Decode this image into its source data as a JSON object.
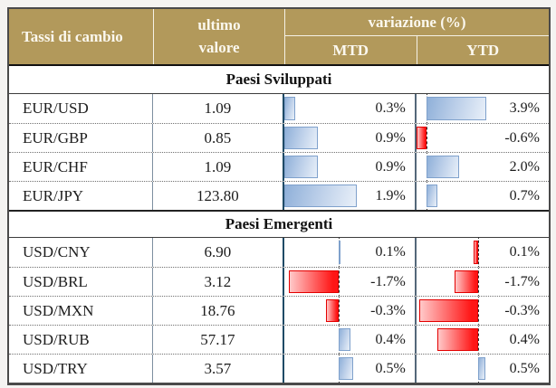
{
  "colors": {
    "header_gold": "#B2995B",
    "header_text": "#FBF8EF",
    "bar_blue": "#8FB0D9",
    "bar_blue_border": "#7FA1CC",
    "bar_red": "#FF1515",
    "bar_red_border": "#E30000",
    "axis_dash": "#2E2E2E",
    "body_text": "#1C1C1C"
  },
  "chart_data": {
    "type": "table",
    "title": "Tassi di cambio",
    "columns": [
      "Tassi di cambio",
      "ultimo valore",
      "variazione (%) MTD",
      "variazione (%) YTD"
    ],
    "legend_note": "blue bars = positive variation, red bars = negative variation, dashed line = zero axis",
    "sections": [
      {
        "name": "Paesi Sviluppati",
        "rows": [
          {
            "pair": "EUR/USD",
            "ultimo_valore": 1.09,
            "mtd_pct": 0.3,
            "ytd_pct": 3.9
          },
          {
            "pair": "EUR/GBP",
            "ultimo_valore": 0.85,
            "mtd_pct": 0.9,
            "ytd_pct": -0.6
          },
          {
            "pair": "EUR/CHF",
            "ultimo_valore": 1.09,
            "mtd_pct": 0.9,
            "ytd_pct": 2.0
          },
          {
            "pair": "EUR/JPY",
            "ultimo_valore": 123.8,
            "mtd_pct": 1.9,
            "ytd_pct": 0.7
          }
        ]
      },
      {
        "name": "Paesi Emergenti",
        "rows": [
          {
            "pair": "USD/CNY",
            "ultimo_valore": 6.9,
            "mtd_pct": 0.1,
            "ytd_pct": 0.1
          },
          {
            "pair": "USD/BRL",
            "ultimo_valore": 3.12,
            "mtd_pct": -1.7,
            "ytd_pct": -1.7
          },
          {
            "pair": "USD/MXN",
            "ultimo_valore": 18.76,
            "mtd_pct": -0.3,
            "ytd_pct": -0.3
          },
          {
            "pair": "USD/RUB",
            "ultimo_valore": 57.17,
            "mtd_pct": 0.4,
            "ytd_pct": 0.4
          },
          {
            "pair": "USD/TRY",
            "ultimo_valore": 3.57,
            "mtd_pct": 0.5,
            "ytd_pct": 0.5
          }
        ]
      }
    ]
  },
  "table": {
    "header": {
      "col_pair": "Tassi di cambio",
      "col_value_line1": "ultimo",
      "col_value_line2": "valore",
      "col_variation": "variazione (%)",
      "col_mtd": "MTD",
      "col_ytd": "YTD"
    },
    "sections": [
      {
        "title": "Paesi Sviluppati",
        "rows": [
          {
            "pair": "EUR/USD",
            "value": "1.09",
            "mtd": {
              "label": "0.3%",
              "dir": "pos",
              "len": 9,
              "axis": 0,
              "color": "blue"
            },
            "ytd": {
              "label": "3.9%",
              "dir": "pos",
              "len": 45,
              "axis": 8,
              "color": "blue"
            }
          },
          {
            "pair": "EUR/GBP",
            "value": "0.85",
            "mtd": {
              "label": "0.9%",
              "dir": "pos",
              "len": 26,
              "axis": 0,
              "color": "blue"
            },
            "ytd": {
              "label": "-0.6%",
              "dir": "neg",
              "len": 8,
              "axis": 8,
              "color": "red"
            }
          },
          {
            "pair": "EUR/CHF",
            "value": "1.09",
            "mtd": {
              "label": "0.9%",
              "dir": "pos",
              "len": 26,
              "axis": 0,
              "color": "blue"
            },
            "ytd": {
              "label": "2.0%",
              "dir": "pos",
              "len": 24,
              "axis": 8,
              "color": "blue"
            }
          },
          {
            "pair": "EUR/JPY",
            "value": "123.80",
            "mtd": {
              "label": "1.9%",
              "dir": "pos",
              "len": 56,
              "axis": 0,
              "color": "blue"
            },
            "ytd": {
              "label": "0.7%",
              "dir": "pos",
              "len": 8,
              "axis": 8,
              "color": "blue"
            }
          }
        ]
      },
      {
        "title": "Paesi Emergenti",
        "rows": [
          {
            "pair": "USD/CNY",
            "value": "6.90",
            "mtd": {
              "label": "0.1%",
              "dir": "pos",
              "len": 1,
              "axis": 42,
              "color": "blue"
            },
            "ytd": {
              "label": "0.1%",
              "dir": "neg",
              "len": 4,
              "axis": 47,
              "color": "red"
            }
          },
          {
            "pair": "USD/BRL",
            "value": "3.12",
            "mtd": {
              "label": "-1.7%",
              "dir": "neg",
              "len": 38,
              "axis": 42,
              "color": "red"
            },
            "ytd": {
              "label": "-1.7%",
              "dir": "neg",
              "len": 18,
              "axis": 47,
              "color": "red"
            }
          },
          {
            "pair": "USD/MXN",
            "value": "18.76",
            "mtd": {
              "label": "-0.3%",
              "dir": "neg",
              "len": 10,
              "axis": 42,
              "color": "red"
            },
            "ytd": {
              "label": "-0.3%",
              "dir": "neg",
              "len": 45,
              "axis": 47,
              "color": "red"
            }
          },
          {
            "pair": "USD/RUB",
            "value": "57.17",
            "mtd": {
              "label": "0.4%",
              "dir": "pos",
              "len": 9,
              "axis": 42,
              "color": "blue"
            },
            "ytd": {
              "label": "0.4%",
              "dir": "neg",
              "len": 31,
              "axis": 47,
              "color": "red"
            }
          },
          {
            "pair": "USD/TRY",
            "value": "3.57",
            "mtd": {
              "label": "0.5%",
              "dir": "pos",
              "len": 11,
              "axis": 42,
              "color": "blue"
            },
            "ytd": {
              "label": "0.5%",
              "dir": "pos",
              "len": 5,
              "axis": 47,
              "color": "blue"
            }
          }
        ]
      }
    ]
  }
}
